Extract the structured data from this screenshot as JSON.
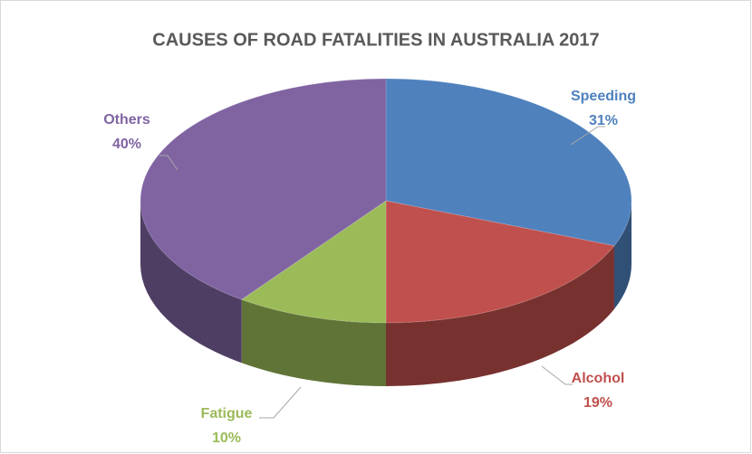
{
  "chart_data": {
    "type": "pie",
    "title": "CAUSES OF ROAD FATALITIES IN AUSTRALIA 2017",
    "categories": [
      "Speeding",
      "Alcohol",
      "Fatigue",
      "Others"
    ],
    "values": [
      31,
      19,
      10,
      40
    ],
    "value_labels": [
      "31%",
      "19%",
      "10%",
      "40%"
    ],
    "colors": [
      "#4f81bd",
      "#c0504d",
      "#9bbb59",
      "#8064a2"
    ]
  }
}
